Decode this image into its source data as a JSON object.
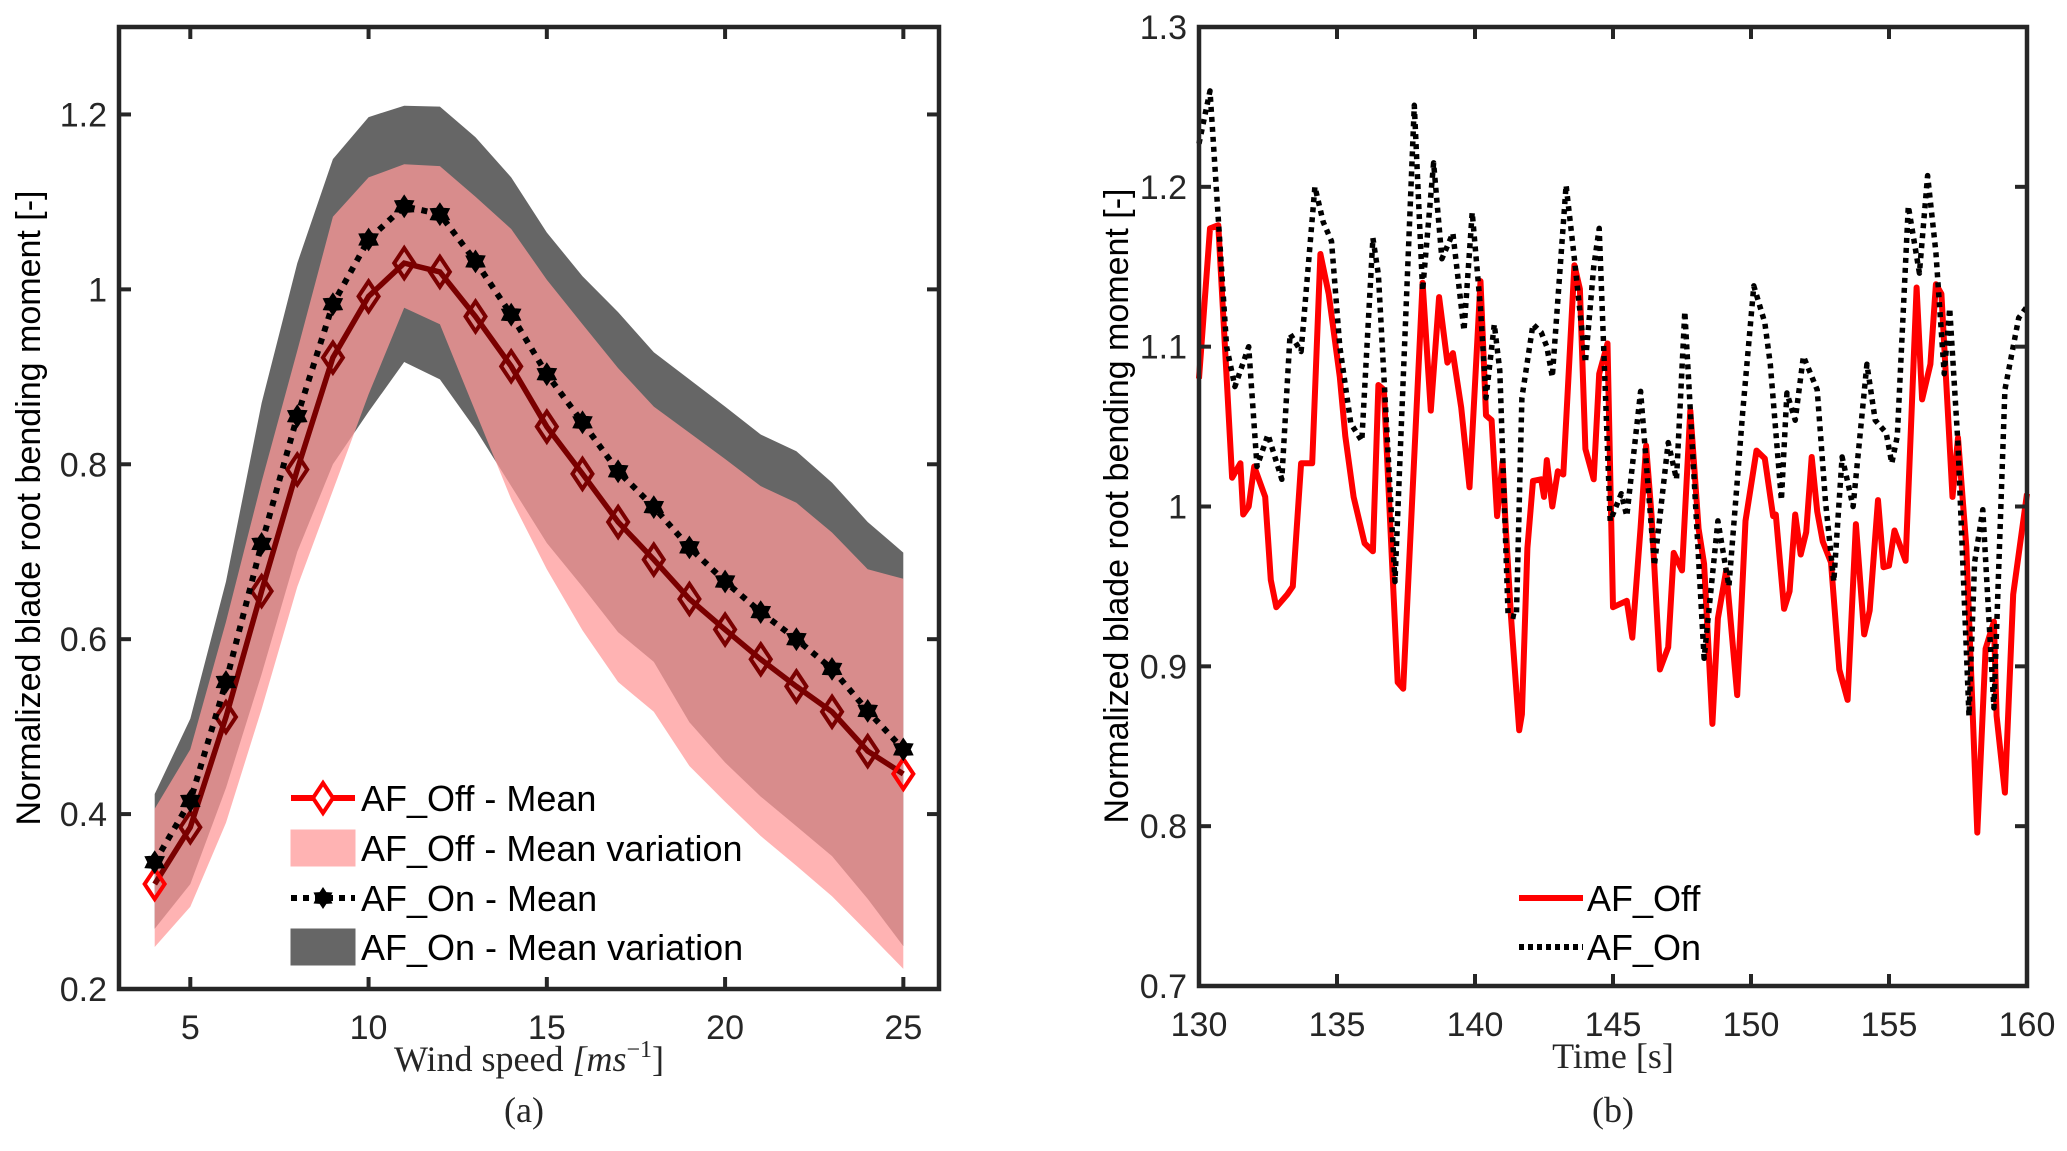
{
  "figure": {
    "panels": [
      "(a)",
      "(b)"
    ]
  },
  "chart_data": [
    {
      "type": "line",
      "panel": "(a)",
      "title": "",
      "xlabel": "Wind speed [ms^-1]",
      "xlabel_main": "Wind speed ",
      "xlabel_unit": "[ms",
      "xlabel_sup": "−1",
      "xlabel_close": "]",
      "ylabel": "Normalized blade root bending moment [-]",
      "caption": "(a)",
      "xlim": [
        3,
        26
      ],
      "ylim": [
        0.2,
        1.3
      ],
      "xticks": [
        5,
        10,
        15,
        20,
        25
      ],
      "xtick_labels": [
        "5",
        "10",
        "15",
        "20",
        "25"
      ],
      "yticks": [
        0.2,
        0.4,
        0.6,
        0.8,
        1.0,
        1.2
      ],
      "ytick_labels": [
        "0.2",
        "0.4",
        "0.6",
        "0.8",
        "1",
        "1.2"
      ],
      "grid": false,
      "legend_position": "bottom-center",
      "x": [
        4,
        5,
        6,
        7,
        8,
        9,
        10,
        11,
        12,
        13,
        14,
        15,
        16,
        17,
        18,
        19,
        20,
        21,
        22,
        23,
        24,
        25
      ],
      "series": [
        {
          "name": "AF_On - Mean variation",
          "kind": "band",
          "color": "#666666",
          "upper": [
            0.423,
            0.509,
            0.666,
            0.87,
            1.03,
            1.149,
            1.197,
            1.21,
            1.209,
            1.174,
            1.128,
            1.065,
            1.015,
            0.974,
            0.928,
            0.897,
            0.866,
            0.834,
            0.815,
            0.779,
            0.734,
            0.699
          ],
          "lower": [
            0.269,
            0.32,
            0.43,
            0.56,
            0.7,
            0.8,
            0.86,
            0.917,
            0.897,
            0.84,
            0.775,
            0.71,
            0.66,
            0.608,
            0.574,
            0.505,
            0.459,
            0.42,
            0.386,
            0.352,
            0.303,
            0.249
          ]
        },
        {
          "name": "AF_Off - Mean variation",
          "kind": "band",
          "color": "#FF9999",
          "opacity": 0.75,
          "upper": [
            0.406,
            0.474,
            0.62,
            0.78,
            0.93,
            1.083,
            1.128,
            1.143,
            1.141,
            1.106,
            1.069,
            1.011,
            0.96,
            0.91,
            0.866,
            0.836,
            0.806,
            0.775,
            0.756,
            0.722,
            0.68,
            0.669
          ],
          "lower": [
            0.248,
            0.294,
            0.39,
            0.52,
            0.66,
            0.77,
            0.88,
            0.979,
            0.96,
            0.86,
            0.76,
            0.68,
            0.61,
            0.551,
            0.517,
            0.455,
            0.414,
            0.375,
            0.341,
            0.306,
            0.265,
            0.223
          ]
        },
        {
          "name": "AF_Off - Mean",
          "kind": "line",
          "color": "#7A0000",
          "legend_color": "#FF0000",
          "marker": "diamond",
          "linestyle": "solid",
          "values": [
            0.32,
            0.385,
            0.511,
            0.655,
            0.794,
            0.922,
            0.992,
            1.03,
            1.02,
            0.969,
            0.912,
            0.843,
            0.789,
            0.734,
            0.691,
            0.646,
            0.611,
            0.577,
            0.546,
            0.517,
            0.472,
            0.446
          ]
        },
        {
          "name": "AF_On - Mean",
          "kind": "line",
          "color": "#000000",
          "marker": "hexagram",
          "linestyle": "dotted",
          "values": [
            0.345,
            0.415,
            0.551,
            0.709,
            0.855,
            0.983,
            1.057,
            1.095,
            1.086,
            1.032,
            0.971,
            0.903,
            0.848,
            0.792,
            0.751,
            0.705,
            0.666,
            0.631,
            0.6,
            0.566,
            0.518,
            0.474
          ]
        }
      ],
      "legend": [
        {
          "label": "AF_Off - Mean",
          "kind": "line",
          "color": "#FF0000",
          "marker": "diamond",
          "linestyle": "solid"
        },
        {
          "label": "AF_Off - Mean variation",
          "kind": "patch",
          "color": "#FFB3B3"
        },
        {
          "label": "AF_On - Mean",
          "kind": "line",
          "color": "#000000",
          "marker": "hexagram",
          "linestyle": "dotted"
        },
        {
          "label": "AF_On - Mean variation",
          "kind": "patch",
          "color": "#666666"
        }
      ]
    },
    {
      "type": "line",
      "panel": "(b)",
      "title": "",
      "xlabel": "Time [s]",
      "ylabel": "Normalized blade root bending moment [-]",
      "caption": "(b)",
      "xlim": [
        130,
        160
      ],
      "ylim": [
        0.7,
        1.3
      ],
      "xticks": [
        130,
        135,
        140,
        145,
        150,
        155,
        160
      ],
      "xtick_labels": [
        "130",
        "135",
        "140",
        "145",
        "150",
        "155",
        "160"
      ],
      "yticks": [
        0.7,
        0.8,
        0.9,
        1.0,
        1.1,
        1.2,
        1.3
      ],
      "ytick_labels": [
        "0.7",
        "0.8",
        "0.9",
        "1",
        "1.1",
        "1.2",
        "1.3"
      ],
      "grid": false,
      "legend_position": "bottom-center",
      "series": [
        {
          "name": "AF_Off",
          "color": "#FF0000",
          "linestyle": "solid",
          "x": [
            130.0,
            130.4,
            130.7,
            131.2,
            131.5,
            131.6,
            131.8,
            132.0,
            132.4,
            132.6,
            132.8,
            133.2,
            133.4,
            133.7,
            134.1,
            134.4,
            134.7,
            135.1,
            135.3,
            135.6,
            136.0,
            136.3,
            136.5,
            136.7,
            137.2,
            137.4,
            137.6,
            138.1,
            138.3,
            138.4,
            138.7,
            139.0,
            139.2,
            139.5,
            139.8,
            140.2,
            140.4,
            140.6,
            140.8,
            141.0,
            141.1,
            141.3,
            141.6,
            141.7,
            141.9,
            142.1,
            142.4,
            142.5,
            142.6,
            142.8,
            143.0,
            143.2,
            143.6,
            143.8,
            144.0,
            144.3,
            144.5,
            144.8,
            145.0,
            145.5,
            145.7,
            146.0,
            146.2,
            146.4,
            146.7,
            147.0,
            147.2,
            147.5,
            147.8,
            148.1,
            148.3,
            148.6,
            148.8,
            149.1,
            149.5,
            149.8,
            150.2,
            150.5,
            150.8,
            150.9,
            151.2,
            151.4,
            151.6,
            151.8,
            152.0,
            152.2,
            152.4,
            152.6,
            152.9,
            153.2,
            153.5,
            153.8,
            154.1,
            154.3,
            154.6,
            154.8,
            155.0,
            155.2,
            155.6,
            156.0,
            156.2,
            156.5,
            156.7,
            156.9,
            157.3,
            157.5,
            157.8,
            158.0,
            158.2,
            158.5,
            158.8,
            158.9,
            159.2,
            159.5,
            160.0
          ],
          "values": [
            1.08,
            1.174,
            1.176,
            1.018,
            1.027,
            0.995,
            1.0,
            1.025,
            1.006,
            0.954,
            0.937,
            0.945,
            0.95,
            1.027,
            1.027,
            1.158,
            1.133,
            1.081,
            1.044,
            1.006,
            0.977,
            0.972,
            1.076,
            1.073,
            0.89,
            0.886,
            0.96,
            1.14,
            1.086,
            1.06,
            1.131,
            1.09,
            1.096,
            1.062,
            1.012,
            1.141,
            1.057,
            1.054,
            0.994,
            1.028,
            0.991,
            0.932,
            0.86,
            0.87,
            0.974,
            1.016,
            1.017,
            1.006,
            1.029,
            1.0,
            1.022,
            1.02,
            1.151,
            1.136,
            1.036,
            1.017,
            1.083,
            1.102,
            0.937,
            0.941,
            0.918,
            0.987,
            1.038,
            0.994,
            0.898,
            0.912,
            0.971,
            0.96,
            1.06,
            0.986,
            0.964,
            0.864,
            0.93,
            0.96,
            0.882,
            0.991,
            1.035,
            1.03,
            0.994,
            0.995,
            0.936,
            0.947,
            0.995,
            0.97,
            0.984,
            1.031,
            0.997,
            0.978,
            0.965,
            0.898,
            0.879,
            0.989,
            0.92,
            0.935,
            1.004,
            0.962,
            0.963,
            0.985,
            0.966,
            1.137,
            1.067,
            1.089,
            1.139,
            1.133,
            1.006,
            1.043,
            0.975,
            0.885,
            0.796,
            0.911,
            0.928,
            0.869,
            0.821,
            0.945,
            1.008
          ]
        },
        {
          "name": "AF_On",
          "color": "#000000",
          "linestyle": "dotted",
          "x": [
            130.0,
            130.4,
            130.7,
            131.0,
            131.3,
            131.8,
            132.1,
            132.5,
            133.0,
            133.3,
            133.7,
            134.2,
            134.5,
            134.8,
            135.1,
            135.5,
            135.9,
            136.3,
            136.5,
            137.1,
            137.8,
            138.1,
            138.5,
            138.8,
            139.2,
            139.6,
            139.9,
            140.2,
            140.4,
            140.7,
            140.9,
            141.2,
            141.5,
            141.7,
            142.1,
            142.4,
            142.6,
            142.8,
            143.3,
            143.6,
            144.0,
            144.3,
            144.5,
            144.9,
            145.3,
            145.5,
            146.0,
            146.5,
            147.0,
            147.3,
            147.6,
            147.9,
            148.3,
            148.8,
            149.2,
            149.7,
            150.1,
            150.5,
            150.7,
            151.1,
            151.3,
            151.6,
            151.9,
            152.4,
            152.7,
            153.0,
            153.3,
            153.7,
            154.2,
            154.5,
            154.9,
            155.1,
            155.3,
            155.7,
            156.1,
            156.4,
            156.7,
            157.0,
            157.2,
            157.5,
            157.9,
            158.1,
            158.4,
            158.8,
            159.2,
            159.7,
            160.0
          ],
          "values": [
            1.227,
            1.26,
            1.18,
            1.1,
            1.075,
            1.1,
            1.025,
            1.045,
            1.017,
            1.108,
            1.097,
            1.2,
            1.178,
            1.166,
            1.1,
            1.052,
            1.041,
            1.168,
            1.145,
            0.953,
            1.251,
            1.135,
            1.215,
            1.155,
            1.171,
            1.11,
            1.184,
            1.124,
            1.068,
            1.114,
            1.085,
            0.932,
            0.931,
            1.068,
            1.114,
            1.109,
            1.1,
            1.081,
            1.201,
            1.155,
            1.09,
            1.15,
            1.174,
            0.991,
            1.008,
            0.994,
            1.072,
            0.963,
            1.04,
            1.017,
            1.122,
            1.03,
            0.905,
            0.991,
            0.95,
            1.059,
            1.138,
            1.115,
            1.089,
            1.004,
            1.071,
            1.054,
            1.094,
            1.073,
            1.003,
            0.953,
            1.031,
            1.0,
            1.089,
            1.054,
            1.046,
            1.027,
            1.044,
            1.188,
            1.146,
            1.207,
            1.159,
            1.083,
            1.124,
            1.039,
            0.869,
            0.965,
            0.998,
            0.874,
            1.073,
            1.118,
            1.125
          ]
        }
      ],
      "legend": [
        {
          "label": "AF_Off",
          "color": "#FF0000",
          "linestyle": "solid"
        },
        {
          "label": "AF_On",
          "color": "#000000",
          "linestyle": "dotted"
        }
      ]
    }
  ]
}
